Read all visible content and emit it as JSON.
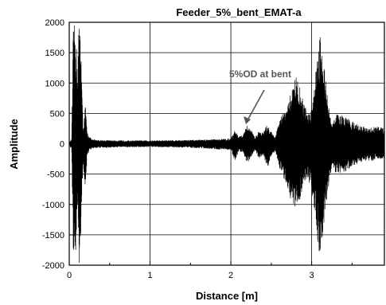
{
  "chart_data": {
    "type": "line",
    "title": "Feeder_5%_bent_EMAT-a",
    "xlabel": "Distance [m]",
    "ylabel": "Amplitude",
    "xlim": [
      0,
      3.9
    ],
    "ylim": [
      -2000,
      2000
    ],
    "xticks": [
      0,
      1,
      2,
      3
    ],
    "yticks": [
      -2000,
      -1500,
      -1000,
      -500,
      0,
      500,
      1000,
      1500,
      2000
    ],
    "xtick_labels": [
      "0",
      "1",
      "2",
      "3"
    ],
    "ytick_labels": [
      "-2000",
      "-1500",
      "-1000",
      "-500",
      "0",
      "500",
      "1000",
      "1500",
      "2000"
    ],
    "grid": true,
    "line_color": "#000000",
    "annotation": {
      "text": "5%OD at bent",
      "target_x": 2.22,
      "target_y": 340
    },
    "envelope": {
      "x": [
        0.0,
        0.03,
        0.05,
        0.08,
        0.1,
        0.12,
        0.14,
        0.17,
        0.2,
        0.22,
        0.25,
        0.28,
        0.32,
        0.4,
        0.6,
        0.8,
        1.0,
        1.3,
        1.6,
        1.9,
        2.0,
        2.05,
        2.1,
        2.15,
        2.2,
        2.25,
        2.3,
        2.35,
        2.4,
        2.45,
        2.5,
        2.55,
        2.6,
        2.65,
        2.7,
        2.75,
        2.8,
        2.85,
        2.9,
        2.95,
        3.0,
        3.05,
        3.1,
        3.15,
        3.2,
        3.25,
        3.3,
        3.4,
        3.5,
        3.6,
        3.7,
        3.8,
        3.9
      ],
      "upper": [
        20,
        80,
        1900,
        2000,
        1200,
        2000,
        1950,
        250,
        650,
        200,
        120,
        70,
        70,
        60,
        55,
        55,
        55,
        60,
        65,
        80,
        90,
        230,
        120,
        140,
        300,
        240,
        100,
        220,
        180,
        320,
        200,
        120,
        380,
        520,
        600,
        900,
        1150,
        950,
        700,
        500,
        600,
        1250,
        1850,
        1400,
        700,
        300,
        500,
        450,
        380,
        300,
        250,
        300,
        250
      ],
      "lower": [
        -20,
        -100,
        -1800,
        -2000,
        -1200,
        -2000,
        -1900,
        -300,
        -850,
        -200,
        -120,
        -80,
        -70,
        -70,
        -60,
        -55,
        -55,
        -60,
        -70,
        -100,
        -100,
        -300,
        -120,
        -150,
        -330,
        -220,
        -100,
        -250,
        -200,
        -400,
        -230,
        -120,
        -400,
        -550,
        -700,
        -1000,
        -1050,
        -950,
        -700,
        -550,
        -800,
        -1300,
        -1900,
        -1400,
        -800,
        -350,
        -500,
        -480,
        -380,
        -300,
        -280,
        -280,
        -250
      ]
    }
  }
}
